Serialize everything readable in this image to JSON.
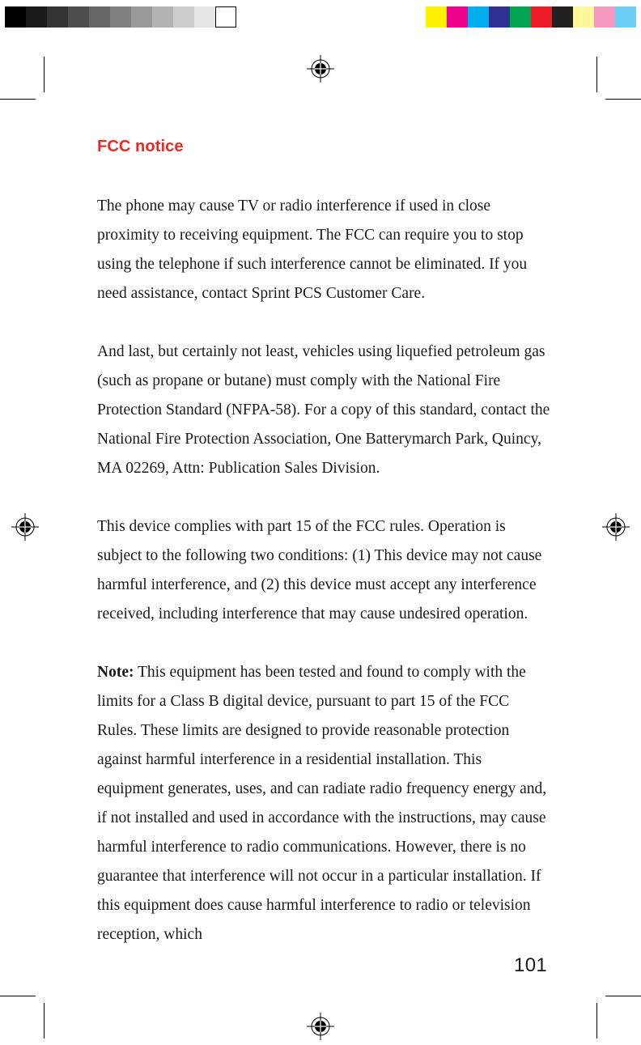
{
  "colorbars": {
    "left": [
      "#000000",
      "#1a1a1a",
      "#333333",
      "#4d4d4d",
      "#666666",
      "#808080",
      "#999999",
      "#b3b3b3",
      "#cccccc",
      "#e6e6e6",
      "#ffffff"
    ],
    "right": [
      "#fff200",
      "#ec008c",
      "#00adee",
      "#2e3192",
      "#00a651",
      "#ed1c24",
      "#231f20",
      "#fff799",
      "#f49ac1",
      "#6dcff6"
    ]
  },
  "heading": "FCC notice",
  "paragraphs": {
    "p1": "The phone may cause TV or radio interference if used in close proximity to receiving equipment. The FCC can require you to stop using the telephone if such interference cannot be eliminated. If you need assistance, contact Sprint PCS Customer Care.",
    "p2": "And last, but certainly not least, vehicles using liquefied petroleum gas (such as propane or butane) must comply with the National Fire Protection Standard (NFPA-58). For a copy of this standard, contact the National Fire Protection Association, One Batterymarch Park, Quincy, MA 02269, Attn: Publication Sales Division.",
    "p3": "This device complies with part 15 of the FCC rules. Operation is subject to the following two conditions: (1) This device may not cause harmful interference, and (2) this device must accept any interference received, including interference that may cause undesired operation.",
    "p4_note_label": "Note:",
    "p4_rest": " This equipment has been tested and found to comply with the limits for a Class B digital device, pursuant to part 15 of the FCC Rules. These limits are designed to provide reasonable protection against harmful interference in a residential installation. This equipment generates, uses, and can radiate radio frequency energy and, if not installed and used in accordance with the instructions, may cause harmful interference to radio communications. However, there is no guarantee that interference will not occur in a particular installation. If this equipment does cause harmful interference to radio or television reception, which"
  },
  "page_number": "101",
  "reg_mark_svg_size": 34
}
